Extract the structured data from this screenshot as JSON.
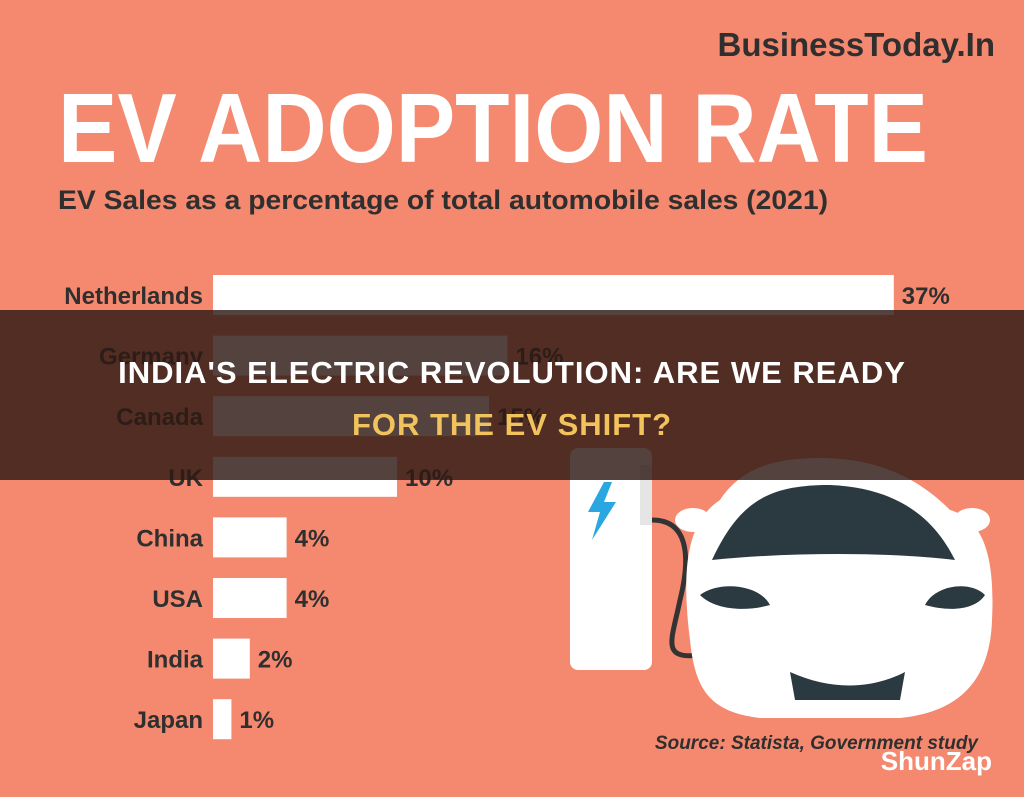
{
  "brand": "BusinessToday.In",
  "chart_data": {
    "type": "bar",
    "orientation": "horizontal",
    "title": "EV ADOPTION RATE",
    "subtitle": "EV Sales as a percentage of total automobile sales (2021)",
    "categories": [
      "Netherlands",
      "Germany",
      "Canada",
      "UK",
      "China",
      "USA",
      "India",
      "Japan"
    ],
    "values": [
      37,
      16,
      15,
      10,
      4,
      4,
      2,
      1
    ],
    "value_labels": [
      "37%",
      "16%",
      "15%",
      "10%",
      "4%",
      "4%",
      "2%",
      "1%"
    ],
    "color": "#ffffff",
    "source": "Source: Statista, Government study"
  },
  "overlay": {
    "lines": [
      "INDIA'S ELECTRIC REVOLUTION: ARE WE READY",
      "FOR THE EV SHIFT?"
    ]
  },
  "watermark": "ShunZap"
}
